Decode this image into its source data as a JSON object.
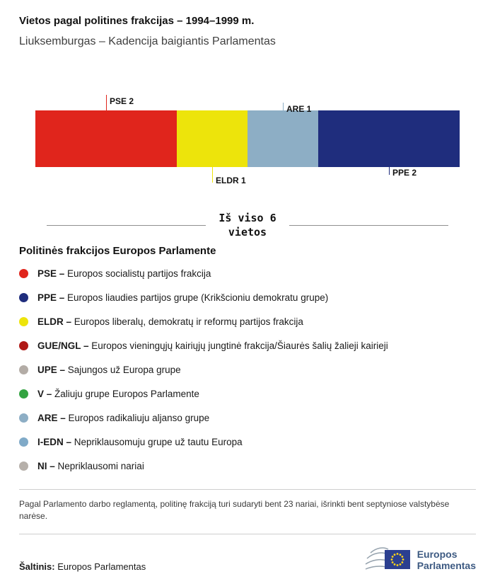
{
  "header": {
    "title": "Vietos pagal politines frakcijas – 1994–1999 m.",
    "subtitle": "Liuksemburgas – Kadencija baigiantis Parlamentas"
  },
  "chart_data": {
    "type": "bar",
    "orientation": "horizontal-stacked",
    "title": "Vietos pagal politines frakcijas – 1994–1999 m.",
    "subtitle": "Liuksemburgas – Kadencija baigiantis Parlamentas",
    "total_seats": 6,
    "total_label": "Iš viso 6\nvietos",
    "segments": [
      {
        "code": "PSE",
        "seats": 2,
        "color": "#e0251c",
        "callout": {
          "side": "top",
          "level": 2
        }
      },
      {
        "code": "ELDR",
        "seats": 1,
        "color": "#ede40b",
        "callout": {
          "side": "bottom",
          "level": 2
        }
      },
      {
        "code": "ARE",
        "seats": 1,
        "color": "#8daec5",
        "callout": {
          "side": "top",
          "level": 1
        }
      },
      {
        "code": "PPE",
        "seats": 2,
        "color": "#1f2d7d",
        "callout": {
          "side": "bottom",
          "level": 1
        }
      }
    ]
  },
  "legend": {
    "heading": "Politinės frakcijos Europos Parlamente",
    "items": [
      {
        "label": "PSE –",
        "name": "Europos socialistų partijos frakcija",
        "color": "#e0251c"
      },
      {
        "label": "PPE –",
        "name": "Europos liaudies partijos grupe (Krikšcioniu demokratu grupe)",
        "color": "#1f2d7d"
      },
      {
        "label": "ELDR –",
        "name": "Europos liberalų, demokratų ir reformų partijos frakcija",
        "color": "#ede40b"
      },
      {
        "label": "GUE/NGL –",
        "name": "Europos vieningųjų kairiųjų jungtinė frakcija/Šiaurės šalių žalieji kairieji",
        "color": "#b01916"
      },
      {
        "label": "UPE –",
        "name": "Sajungos už Europa grupe",
        "color": "#b3aca6"
      },
      {
        "label": "V –",
        "name": "Žaliuju grupe Europos Parlamente",
        "color": "#33a341"
      },
      {
        "label": "ARE –",
        "name": "Europos radikaliuju aljanso grupe",
        "color": "#8daec5"
      },
      {
        "label": "I-EDN –",
        "name": "Nepriklausomuju grupe už tautu Europa",
        "color": "#80aac8"
      },
      {
        "label": "NI –",
        "name": "Nepriklausomi nariai",
        "color": "#b6b0aa"
      }
    ]
  },
  "note": "Pagal Parlamento darbo reglamentą, politinę frakciją turi sudaryti bent 23 nariai, išrinkti bent septyniose valstybėse narėse.",
  "source": {
    "label": "Šaltinis:",
    "value": "Europos Parlamentas"
  },
  "logo": {
    "line1": "Europos",
    "line2": "Parlamentas",
    "flag_color": "#2b3f90",
    "star_color": "#ffd617"
  }
}
